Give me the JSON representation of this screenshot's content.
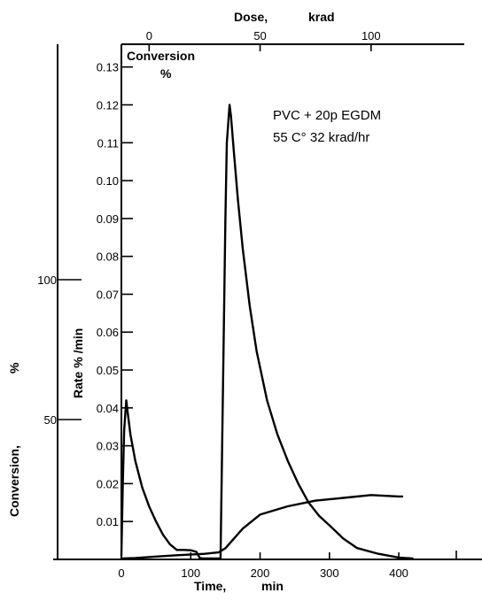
{
  "chart_data": {
    "type": "line",
    "title": "",
    "annotation": [
      "PVC + 20p EGDM",
      "55 C° 32 krad/hr"
    ],
    "x": {
      "label": "Time,",
      "unit": "min",
      "ticks": [
        0,
        100,
        200,
        300,
        400
      ],
      "range": [
        0,
        520
      ]
    },
    "x_top": {
      "label": "Dose,",
      "unit": "krad",
      "ticks": [
        0,
        50,
        100
      ],
      "range": [
        -12.5,
        142
      ]
    },
    "y_right_inner": {
      "label": "Rate % /min",
      "ticks": [
        "0.01",
        "0.02",
        "0.03",
        "0.04",
        "0.05",
        "0.06",
        "0.07",
        "0.08",
        "0.09",
        "0.10",
        "0.11",
        "0.12",
        "0.13"
      ],
      "range": [
        0,
        0.136
      ]
    },
    "y_left": {
      "label": "Conversion,",
      "unit": "%",
      "ticks": [
        50,
        100
      ],
      "range": [
        0,
        200
      ]
    },
    "y_inner_title": [
      "Conversion",
      "%"
    ],
    "series": [
      {
        "axis": "rate",
        "points": [
          [
            0,
            0.001
          ],
          [
            2,
            0.02
          ],
          [
            4,
            0.034
          ],
          [
            7,
            0.042
          ],
          [
            9,
            0.039
          ],
          [
            13,
            0.033
          ],
          [
            20,
            0.026
          ],
          [
            30,
            0.019
          ],
          [
            40,
            0.014
          ],
          [
            50,
            0.01
          ],
          [
            60,
            0.0065
          ],
          [
            70,
            0.004
          ],
          [
            80,
            0.0025
          ],
          [
            90,
            0.0025
          ],
          [
            100,
            0.0024
          ],
          [
            108,
            0.002
          ],
          [
            113,
            0.0004
          ],
          [
            118,
            0.0
          ],
          [
            125,
            0.0
          ],
          [
            135,
            0.0
          ],
          [
            143,
            0.0
          ],
          [
            150,
            0.09
          ],
          [
            152,
            0.11
          ],
          [
            156,
            0.12
          ],
          [
            158,
            0.117
          ],
          [
            162,
            0.108
          ],
          [
            168,
            0.095
          ],
          [
            175,
            0.082
          ],
          [
            185,
            0.067
          ],
          [
            195,
            0.055
          ],
          [
            210,
            0.042
          ],
          [
            225,
            0.033
          ],
          [
            240,
            0.026
          ],
          [
            255,
            0.02
          ],
          [
            270,
            0.015
          ],
          [
            285,
            0.0115
          ],
          [
            300,
            0.009
          ],
          [
            320,
            0.0055
          ],
          [
            340,
            0.003
          ],
          [
            370,
            0.0015
          ],
          [
            400,
            0.0005
          ],
          [
            420,
            0.0
          ]
        ]
      },
      {
        "axis": "conversion",
        "points": [
          [
            0,
            0.0
          ],
          [
            20,
            0.5
          ],
          [
            50,
            1.0
          ],
          [
            80,
            1.5
          ],
          [
            120,
            2.0
          ],
          [
            140,
            2.5
          ],
          [
            150,
            4
          ],
          [
            175,
            11
          ],
          [
            200,
            16
          ],
          [
            240,
            19
          ],
          [
            280,
            21
          ],
          [
            320,
            22
          ],
          [
            360,
            23
          ],
          [
            400,
            22.5
          ],
          [
            405,
            22.5
          ]
        ]
      }
    ]
  }
}
